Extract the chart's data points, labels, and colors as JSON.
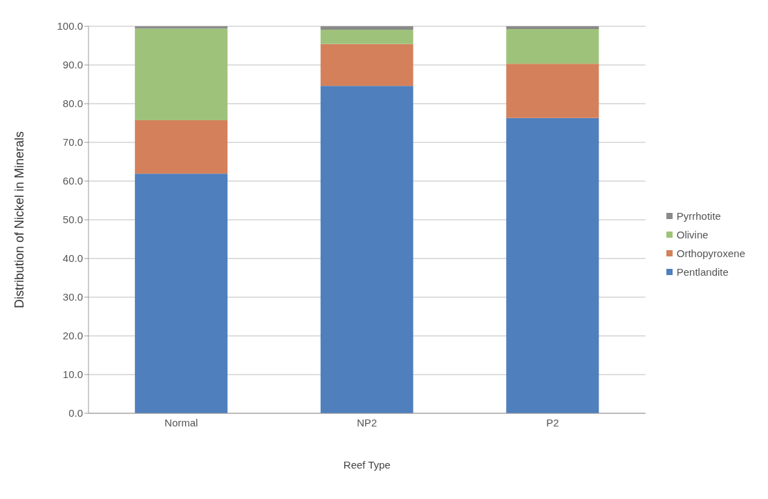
{
  "chart_data": {
    "type": "bar",
    "stacked": true,
    "xlabel": "Reef Type",
    "ylabel": "Distribution of Nickel in Minerals",
    "categories": [
      "Normal",
      "NP2",
      "P2"
    ],
    "series": [
      {
        "name": "Pentlandite",
        "color": "#4f7fbd",
        "values": [
          61.9,
          84.6,
          76.3
        ]
      },
      {
        "name": "Orthopyroxene",
        "color": "#d4805a",
        "values": [
          13.8,
          10.8,
          14.0
        ]
      },
      {
        "name": "Olivine",
        "color": "#9fc27a",
        "values": [
          23.7,
          3.7,
          9.0
        ]
      },
      {
        "name": "Pyrrhotite",
        "color": "#8a8a8a",
        "values": [
          0.6,
          0.9,
          0.7
        ]
      }
    ],
    "ylim": [
      0,
      100
    ],
    "yticks": [
      {
        "value": 0,
        "label": "0.0"
      },
      {
        "value": 10,
        "label": "10.0"
      },
      {
        "value": 20,
        "label": "20.0"
      },
      {
        "value": 30,
        "label": "30.0"
      },
      {
        "value": 40,
        "label": "40.0"
      },
      {
        "value": 50,
        "label": "50.0"
      },
      {
        "value": 60,
        "label": "60.0"
      },
      {
        "value": 70,
        "label": "70.0"
      },
      {
        "value": 80,
        "label": "80.0"
      },
      {
        "value": 90,
        "label": "90.0"
      },
      {
        "value": 100,
        "label": "100.0"
      }
    ],
    "grid": "y",
    "legend": "right"
  }
}
